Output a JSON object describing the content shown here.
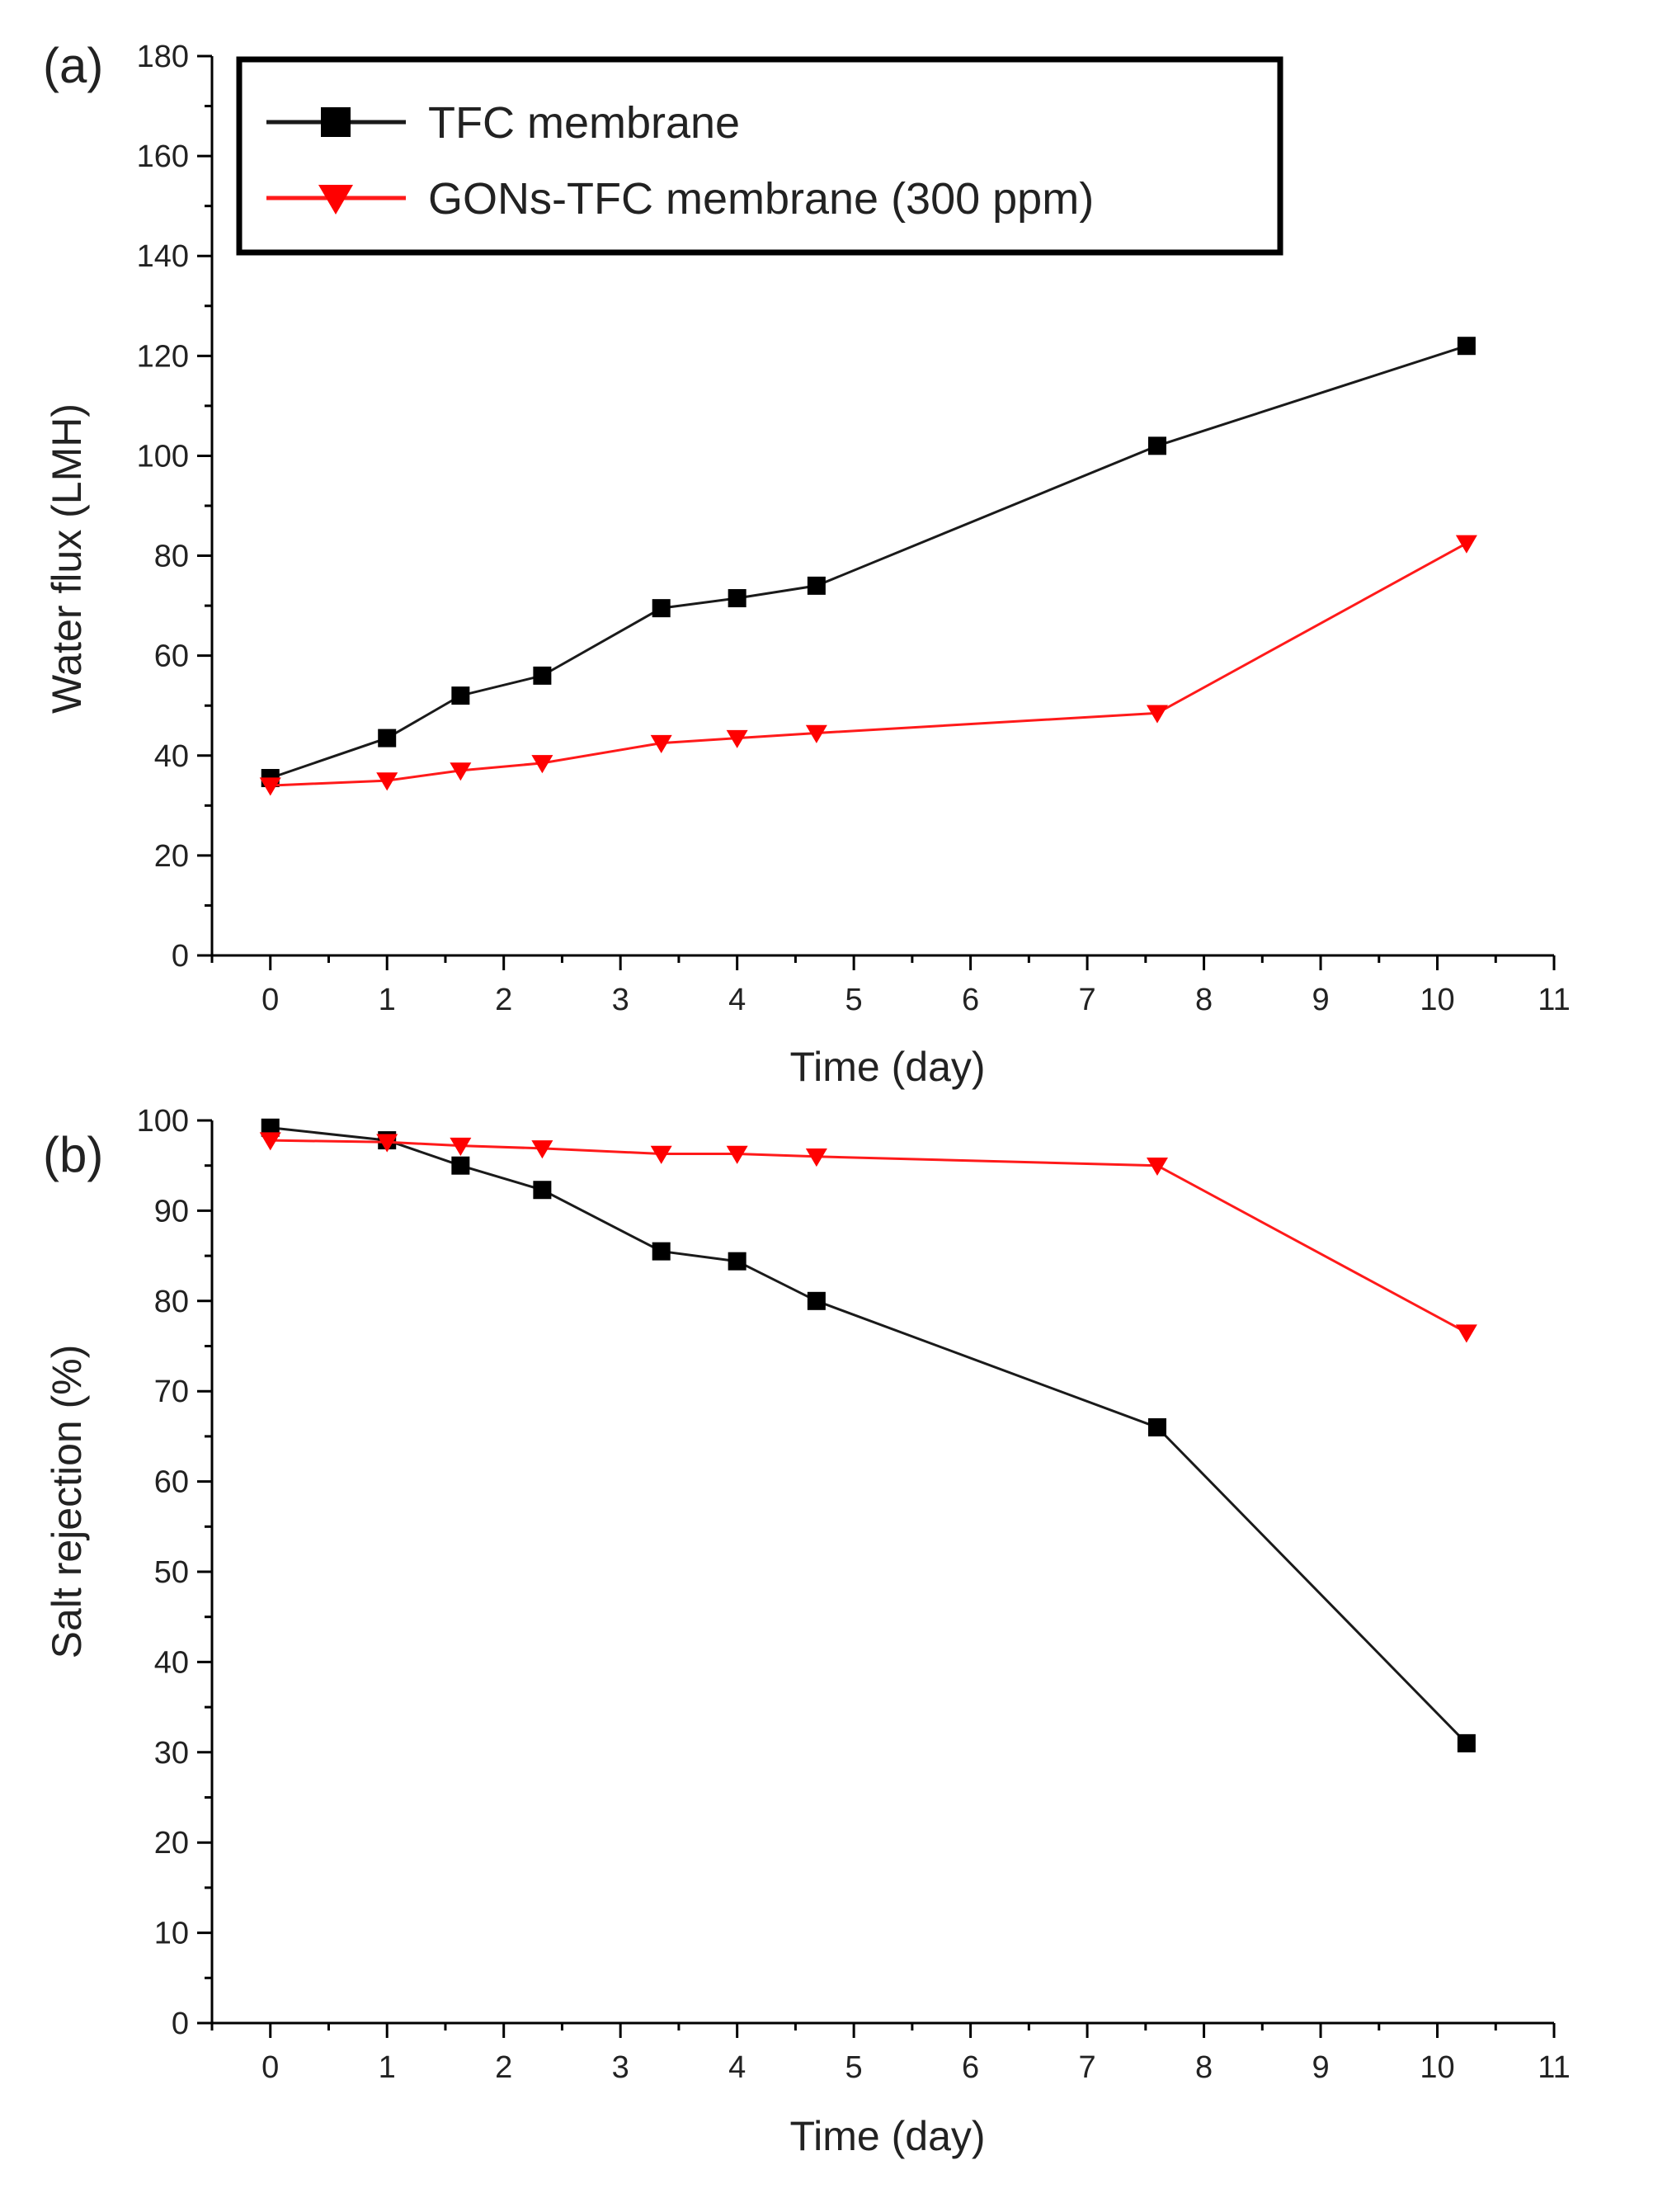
{
  "colors": {
    "tfc": "#1a1a1a",
    "gons": "#ff1a1a",
    "axis": "#000000"
  },
  "legend": {
    "entries": [
      {
        "label": "TFC membrane",
        "marker": "square-marker-icon"
      },
      {
        "label": "GONs-TFC membrane (300 ppm)",
        "marker": "down-triangle-marker-icon"
      }
    ]
  },
  "chart_data": [
    {
      "type": "line",
      "panel_label": "(a)",
      "title": "",
      "xlabel": "Time (day)",
      "ylabel": "Water flux (LMH)",
      "xlim": [
        -0.5,
        11
      ],
      "ylim": [
        0,
        180
      ],
      "x_ticks": [
        0,
        1,
        2,
        3,
        4,
        5,
        6,
        7,
        8,
        9,
        10,
        11
      ],
      "y_ticks": [
        0,
        20,
        40,
        60,
        80,
        100,
        120,
        140,
        160,
        180
      ],
      "legend_position": "top-left",
      "series": [
        {
          "name": "TFC membrane",
          "marker": "square",
          "x": [
            0,
            1,
            1.63,
            2.33,
            3.35,
            4.0,
            4.68,
            7.6,
            10.25
          ],
          "y": [
            35.5,
            43.5,
            52,
            56,
            69.5,
            71.5,
            74,
            102,
            122
          ]
        },
        {
          "name": "GONs-TFC membrane (300 ppm)",
          "marker": "triangle-down",
          "x": [
            0,
            1,
            1.63,
            2.33,
            3.35,
            4.0,
            4.68,
            7.6,
            10.25
          ],
          "y": [
            34,
            35,
            37,
            38.5,
            42.5,
            43.5,
            44.5,
            48.5,
            82.5
          ]
        }
      ]
    },
    {
      "type": "line",
      "panel_label": "(b)",
      "title": "",
      "xlabel": "Time (day)",
      "ylabel": "Salt rejection (%)",
      "xlim": [
        -0.5,
        11
      ],
      "ylim": [
        0,
        100
      ],
      "x_ticks": [
        0,
        1,
        2,
        3,
        4,
        5,
        6,
        7,
        8,
        9,
        10,
        11
      ],
      "y_ticks": [
        0,
        10,
        20,
        30,
        40,
        50,
        60,
        70,
        80,
        90,
        100
      ],
      "legend_position": "none",
      "series": [
        {
          "name": "TFC membrane",
          "marker": "square",
          "x": [
            0,
            1,
            1.63,
            2.33,
            3.35,
            4.0,
            4.68,
            7.6,
            10.25
          ],
          "y": [
            99.2,
            97.8,
            95,
            92.3,
            85.5,
            84.4,
            80,
            66,
            31
          ]
        },
        {
          "name": "GONs-TFC membrane (300 ppm)",
          "marker": "triangle-down",
          "x": [
            0,
            1,
            1.63,
            2.33,
            3.35,
            4.0,
            4.68,
            7.6,
            10.25
          ],
          "y": [
            97.8,
            97.6,
            97.2,
            96.9,
            96.3,
            96.3,
            96.0,
            95.0,
            76.5
          ]
        }
      ]
    }
  ]
}
